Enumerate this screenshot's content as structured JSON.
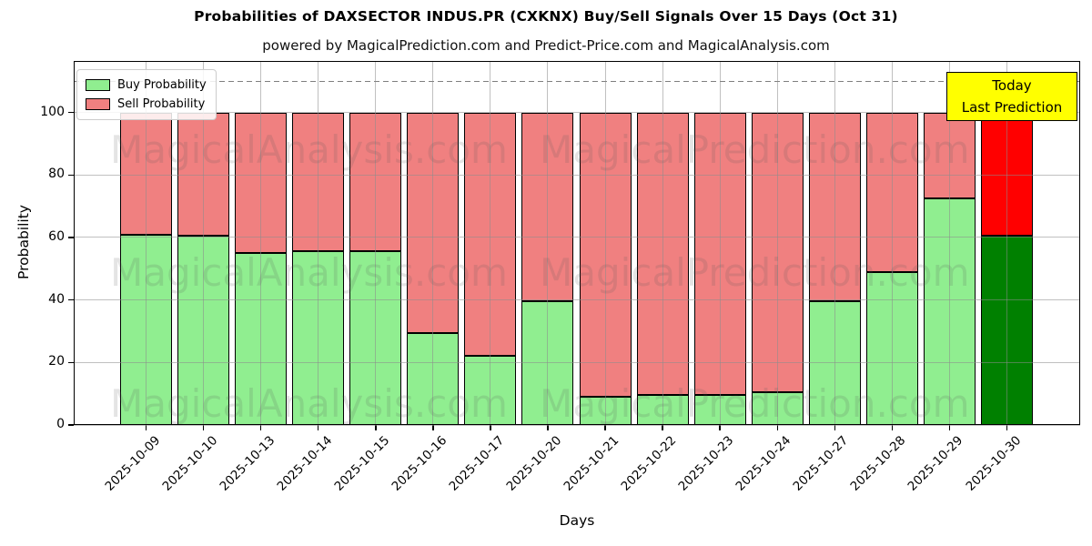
{
  "title": "Probabilities of DAXSECTOR INDUS.PR (CXKNX) Buy/Sell Signals Over 15 Days (Oct 31)",
  "subtitle": "powered by MagicalPrediction.com and Predict-Price.com and MagicalAnalysis.com",
  "annotation": {
    "line1": "Today",
    "line2": "Last Prediction",
    "bg_color": "#FFFF00"
  },
  "watermarks": {
    "left": "MagicalAnalysis.com",
    "right": "MagicalPrediction.com"
  },
  "colors": {
    "buy": "#90EE90",
    "sell": "#F08080",
    "today_buy": "#008000",
    "today_sell": "#FF0000",
    "bar_edge": "#000000",
    "grid": "#8c8c8c",
    "dashed_line": "#7f7f7f"
  },
  "chart_data": {
    "type": "bar",
    "stacked": true,
    "title": "Probabilities of DAXSECTOR INDUS.PR (CXKNX) Buy/Sell Signals Over 15 Days (Oct 31)",
    "subtitle": "powered by MagicalPrediction.com and Predict-Price.com and MagicalAnalysis.com",
    "xlabel": "Days",
    "ylabel": "Probability",
    "categories": [
      "2025-10-09",
      "2025-10-10",
      "2025-10-13",
      "2025-10-14",
      "2025-10-15",
      "2025-10-16",
      "2025-10-17",
      "2025-10-20",
      "2025-10-21",
      "2025-10-22",
      "2025-10-23",
      "2025-10-24",
      "2025-10-27",
      "2025-10-28",
      "2025-10-29",
      "2025-10-30"
    ],
    "series": [
      {
        "name": "Buy Probability",
        "color": "#90EE90",
        "values": [
          61,
          60.5,
          55,
          55.5,
          55.5,
          29.5,
          22,
          39.5,
          9,
          9.5,
          9.5,
          10.5,
          39.5,
          49,
          72.5,
          60.5
        ]
      },
      {
        "name": "Sell Probability",
        "color": "#F08080",
        "values": [
          39,
          39.5,
          45,
          44.5,
          44.5,
          70.5,
          78,
          60.5,
          91,
          90.5,
          90.5,
          89.5,
          60.5,
          51,
          27.5,
          39.5
        ]
      }
    ],
    "today_index": 15,
    "today_colors": {
      "buy": "#008000",
      "sell": "#FF0000"
    },
    "yticks": [
      0,
      20,
      40,
      60,
      80,
      100
    ],
    "ylim": [
      0,
      116.5
    ],
    "dashed_line_y": 110,
    "grid": true,
    "legend_position": "upper left"
  }
}
